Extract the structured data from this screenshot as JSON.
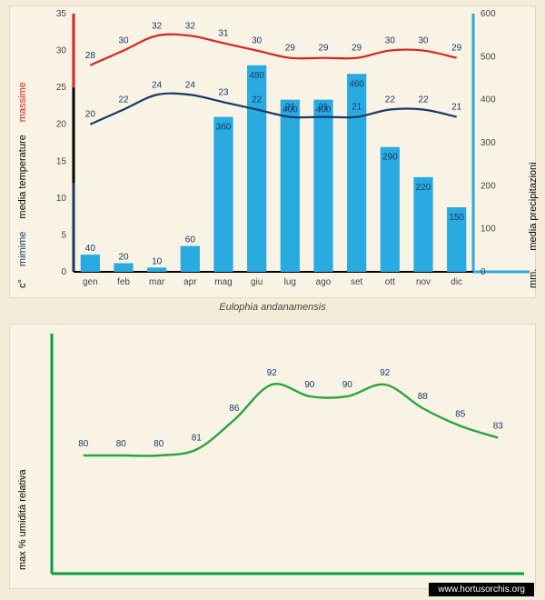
{
  "species_label": "Eulophia andanamensis",
  "credit": "www.hortusorchis.org",
  "months": [
    "gen",
    "feb",
    "mar",
    "apr",
    "mag",
    "giu",
    "lug",
    "ago",
    "set",
    "ott",
    "nov",
    "dic"
  ],
  "top_chart": {
    "background": "#f8f3e4",
    "plot_bg": "#f8f3e4",
    "temp_axis": {
      "label_media": "media  temperature",
      "label_minime": "mimime",
      "label_massime": "massime",
      "unit": "c°",
      "color_min": "#1a3a66",
      "color_max": "#d92222",
      "min": 0,
      "max": 35,
      "step": 5
    },
    "precip_axis": {
      "label": "media  precipitazioni",
      "unit": "mm.",
      "color": "#29abe2",
      "min": 0,
      "max": 600,
      "step": 100
    },
    "bars": {
      "color": "#29abe2",
      "values": [
        40,
        20,
        10,
        60,
        360,
        480,
        400,
        400,
        460,
        290,
        220,
        150
      ]
    },
    "temp_max": {
      "color": "#d92222",
      "values": [
        28,
        30,
        32,
        32,
        31,
        30,
        29,
        29,
        29,
        30,
        30,
        29
      ]
    },
    "temp_min": {
      "color": "#1a3a66",
      "values": [
        20,
        22,
        24,
        24,
        23,
        22,
        21,
        21,
        21,
        22,
        22,
        21
      ]
    }
  },
  "bot_chart": {
    "label": "max % umidità relativa",
    "axis_color": "#0a9b3b",
    "line_color": "#2aa53f",
    "values": [
      80,
      80,
      80,
      81,
      86,
      92,
      90,
      90,
      92,
      88,
      85,
      83
    ],
    "y_min": 60,
    "y_max": 100
  }
}
